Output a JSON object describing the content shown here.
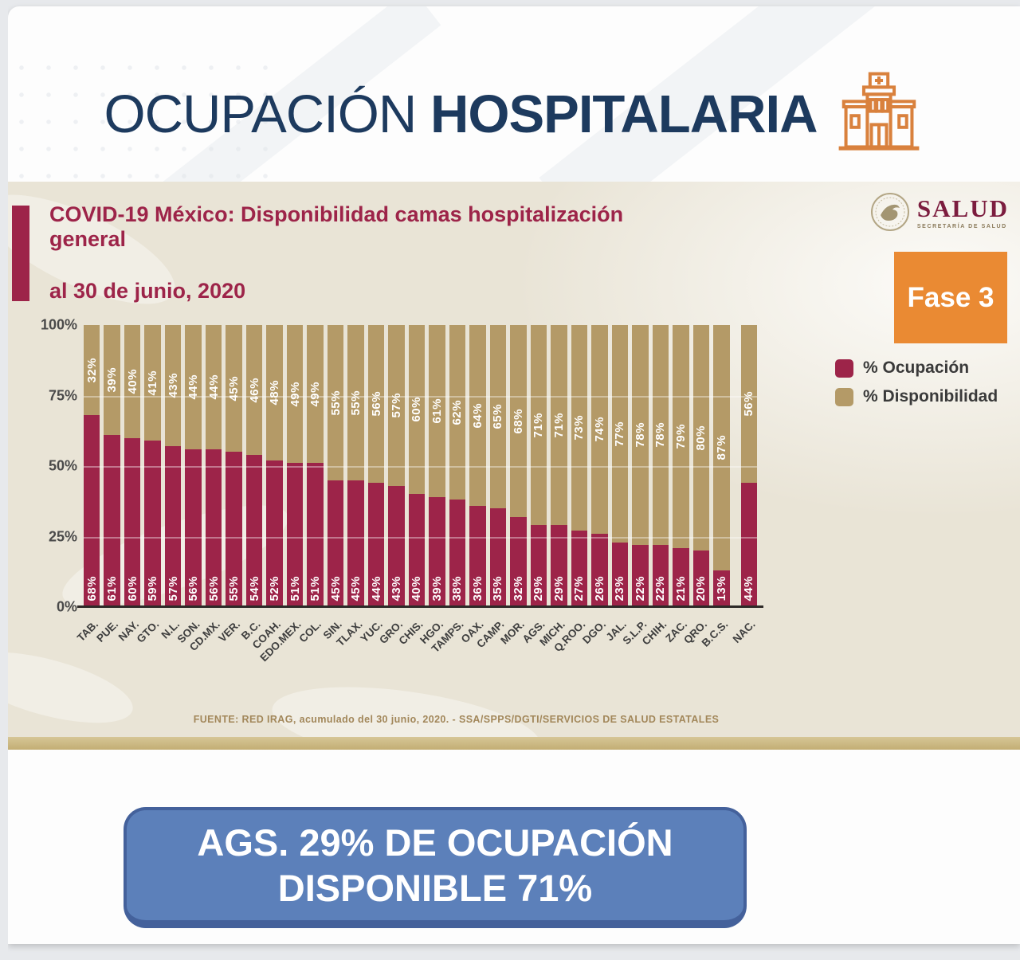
{
  "header": {
    "title_light": "OCUPACIÓN",
    "title_bold": "HOSPITALARIA"
  },
  "panel": {
    "title": "COVID-19 México: Disponibilidad camas hospitalización general",
    "subtitle": "al 30 de junio, 2020",
    "logo": {
      "name": "SALUD",
      "subtitle": "SECRETARÍA DE SALUD"
    },
    "phase_badge": "Fase 3",
    "source": "FUENTE: RED IRAG, acumulado del 30 junio, 2020. -  SSA/SPPS/DGTI/SERVICIOS DE SALUD ESTATALES"
  },
  "banner": {
    "line1": "AGS. 29% DE OCUPACIÓN",
    "line2": "DISPONIBLE 71%"
  },
  "colors": {
    "occupation": "#9d2449",
    "availability": "#b49a67",
    "badge_orange": "#ea8a33",
    "banner_blue": "#5c80ba",
    "title_navy": "#1d3a5e"
  },
  "chart_data": {
    "type": "bar",
    "stacked": true,
    "percent": true,
    "title": "COVID-19 México: Disponibilidad camas hospitalización general",
    "subtitle": "al 30 de junio, 2020",
    "categories": [
      "TAB.",
      "PUE.",
      "NAY.",
      "GTO.",
      "N.L.",
      "SON.",
      "CD.MX.",
      "VER.",
      "B.C.",
      "COAH.",
      "EDO.MEX.",
      "COL.",
      "SIN.",
      "TLAX.",
      "YUC.",
      "GRO.",
      "CHIS.",
      "HGO.",
      "TAMPS.",
      "OAX.",
      "CAMP.",
      "MOR.",
      "AGS.",
      "MICH.",
      "Q.ROO.",
      "DGO.",
      "JAL.",
      "S.L.P.",
      "CHIH.",
      "ZAC.",
      "QRO.",
      "B.C.S.",
      "NAC."
    ],
    "series": [
      {
        "name": "% Ocupación",
        "color": "#9d2449",
        "values": [
          68,
          61,
          60,
          59,
          57,
          56,
          56,
          55,
          54,
          52,
          51,
          51,
          45,
          45,
          44,
          43,
          40,
          39,
          38,
          36,
          35,
          32,
          29,
          29,
          27,
          26,
          23,
          22,
          22,
          21,
          20,
          13,
          44
        ]
      },
      {
        "name": "% Disponibilidad",
        "color": "#b49a67",
        "values": [
          32,
          39,
          40,
          41,
          43,
          44,
          44,
          45,
          46,
          48,
          49,
          49,
          55,
          55,
          56,
          57,
          60,
          61,
          62,
          64,
          65,
          68,
          71,
          71,
          73,
          74,
          77,
          78,
          78,
          79,
          80,
          87,
          56
        ]
      }
    ],
    "ylim": [
      0,
      100
    ],
    "yticks": [
      "100%",
      "75%",
      "50%",
      "25%",
      "0%"
    ],
    "grid": true,
    "legend_position": "right"
  }
}
